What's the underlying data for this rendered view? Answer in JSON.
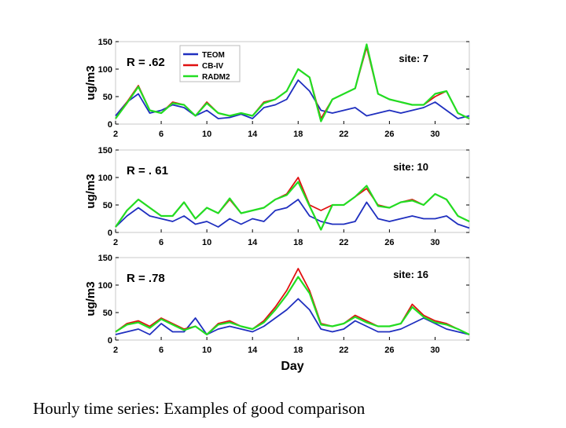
{
  "caption": "Hourly time series: Examples of good comparison",
  "colors": {
    "TEOM": "#1f2fbf",
    "CB-IV": "#e01010",
    "RADM2": "#22dd22"
  },
  "legend": [
    "TEOM",
    "CB-IV",
    "RADM2"
  ],
  "x_axis_label": "Day",
  "chart_data": [
    {
      "type": "line",
      "site": "site: 7",
      "r_label": "R = .62",
      "ylabel": "ug/m3",
      "ylim": [
        0,
        150
      ],
      "yticks": [
        0,
        50,
        100,
        150
      ],
      "xlim": [
        2,
        33
      ],
      "xticks": [
        2,
        6,
        10,
        14,
        18,
        22,
        26,
        30
      ],
      "x": [
        2,
        3,
        4,
        5,
        6,
        7,
        8,
        9,
        10,
        11,
        12,
        13,
        14,
        15,
        16,
        17,
        18,
        19,
        20,
        21,
        22,
        23,
        24,
        25,
        26,
        27,
        28,
        29,
        30,
        31,
        32,
        33
      ],
      "series": [
        {
          "name": "TEOM",
          "values": [
            15,
            40,
            55,
            20,
            25,
            35,
            30,
            15,
            25,
            10,
            12,
            18,
            10,
            30,
            35,
            45,
            80,
            60,
            25,
            20,
            25,
            30,
            15,
            20,
            25,
            20,
            25,
            30,
            40,
            25,
            10,
            15
          ]
        },
        {
          "name": "CB-IV",
          "values": [
            10,
            40,
            70,
            25,
            20,
            40,
            35,
            15,
            40,
            20,
            15,
            20,
            15,
            40,
            45,
            60,
            100,
            85,
            10,
            45,
            55,
            65,
            140,
            55,
            45,
            40,
            35,
            35,
            50,
            60,
            20,
            10
          ]
        },
        {
          "name": "RADM2",
          "values": [
            10,
            38,
            68,
            25,
            20,
            38,
            35,
            15,
            38,
            20,
            15,
            20,
            15,
            38,
            45,
            60,
            100,
            85,
            5,
            45,
            55,
            65,
            145,
            55,
            45,
            40,
            35,
            35,
            55,
            60,
            20,
            10
          ]
        }
      ]
    },
    {
      "type": "line",
      "site": "site: 10",
      "r_label": "R = . 61",
      "ylabel": "ug/m3",
      "ylim": [
        0,
        150
      ],
      "yticks": [
        0,
        50,
        100,
        150
      ],
      "xlim": [
        2,
        33
      ],
      "xticks": [
        2,
        6,
        10,
        14,
        18,
        22,
        26,
        30
      ],
      "x": [
        2,
        3,
        4,
        5,
        6,
        7,
        8,
        9,
        10,
        11,
        12,
        13,
        14,
        15,
        16,
        17,
        18,
        19,
        20,
        21,
        22,
        23,
        24,
        25,
        26,
        27,
        28,
        29,
        30,
        31,
        32,
        33
      ],
      "series": [
        {
          "name": "TEOM",
          "values": [
            10,
            30,
            45,
            30,
            25,
            20,
            30,
            15,
            20,
            10,
            25,
            15,
            25,
            20,
            40,
            45,
            60,
            30,
            20,
            15,
            15,
            20,
            55,
            25,
            20,
            25,
            30,
            25,
            25,
            30,
            15,
            8
          ]
        },
        {
          "name": "CB-IV",
          "values": [
            10,
            40,
            60,
            45,
            30,
            30,
            55,
            25,
            45,
            35,
            60,
            35,
            40,
            45,
            60,
            70,
            100,
            50,
            40,
            50,
            50,
            65,
            80,
            50,
            45,
            55,
            60,
            50,
            70,
            60,
            30,
            20
          ]
        },
        {
          "name": "RADM2",
          "values": [
            10,
            40,
            60,
            45,
            30,
            30,
            55,
            25,
            45,
            35,
            62,
            35,
            40,
            45,
            60,
            68,
            92,
            48,
            5,
            50,
            50,
            65,
            85,
            48,
            45,
            55,
            58,
            50,
            70,
            60,
            30,
            20
          ]
        }
      ]
    },
    {
      "type": "line",
      "site": "site: 16",
      "r_label": "R = .78",
      "ylabel": "ug/m3",
      "ylim": [
        0,
        150
      ],
      "yticks": [
        0,
        50,
        100,
        150
      ],
      "xlim": [
        2,
        33
      ],
      "xticks": [
        2,
        6,
        10,
        14,
        18,
        22,
        26,
        30
      ],
      "x": [
        2,
        3,
        4,
        5,
        6,
        7,
        8,
        9,
        10,
        11,
        12,
        13,
        14,
        15,
        16,
        17,
        18,
        19,
        20,
        21,
        22,
        23,
        24,
        25,
        26,
        27,
        28,
        29,
        30,
        31,
        32,
        33
      ],
      "series": [
        {
          "name": "TEOM",
          "values": [
            10,
            15,
            20,
            10,
            30,
            15,
            15,
            40,
            10,
            20,
            25,
            20,
            15,
            25,
            40,
            55,
            75,
            55,
            20,
            15,
            20,
            35,
            25,
            15,
            15,
            20,
            30,
            40,
            30,
            20,
            15,
            10
          ]
        },
        {
          "name": "CB-IV",
          "values": [
            15,
            30,
            35,
            25,
            40,
            30,
            20,
            25,
            10,
            30,
            35,
            25,
            20,
            35,
            60,
            90,
            130,
            90,
            30,
            25,
            30,
            45,
            35,
            25,
            25,
            30,
            65,
            45,
            35,
            30,
            20,
            10
          ]
        },
        {
          "name": "RADM2",
          "values": [
            15,
            28,
            32,
            22,
            38,
            28,
            18,
            25,
            10,
            28,
            32,
            25,
            20,
            32,
            55,
            82,
            115,
            85,
            28,
            25,
            30,
            42,
            32,
            25,
            25,
            30,
            60,
            42,
            32,
            28,
            20,
            10
          ]
        }
      ]
    }
  ]
}
